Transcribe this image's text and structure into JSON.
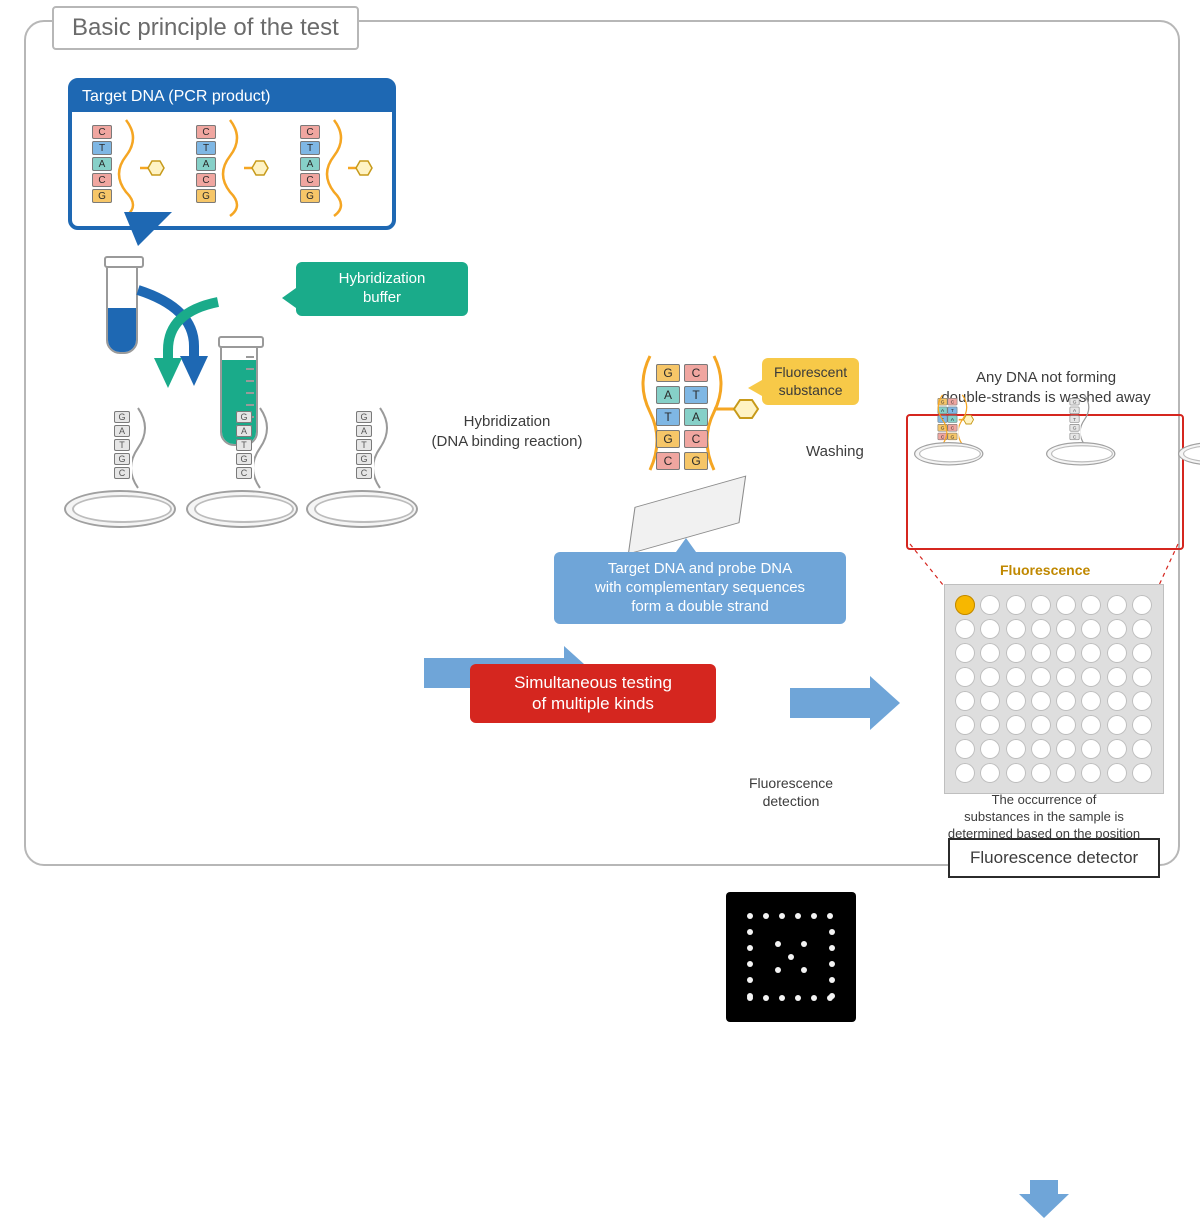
{
  "title": "Basic principle of the test",
  "colors": {
    "frame_border": "#b7b7b7",
    "title_text": "#6b6b6b",
    "primary_blue": "#1e68b3",
    "arrow_blue": "#6fa5d8",
    "buffer_green": "#1aab8a",
    "yellow": "#f7c948",
    "red_callout": "#d5261f",
    "callout_blue": "#6fa5d8",
    "nt_G": "#f6c668",
    "nt_A": "#86d0c8",
    "nt_T": "#7fb7e4",
    "nt_C": "#f0a6a0",
    "strand": "#f5a623",
    "text": "#3c3c3c",
    "grid_bg": "#dedede",
    "well_fluor": "#f7b700"
  },
  "panels": {
    "target_dna": {
      "title": "Target DNA (PCR product)",
      "sequences": [
        [
          "C",
          "T",
          "A",
          "C",
          "G"
        ],
        [
          "C",
          "T",
          "A",
          "C",
          "G"
        ],
        [
          "C",
          "T",
          "A",
          "C",
          "G"
        ]
      ]
    },
    "buffer_label": "Hybridization\nbuffer",
    "hybridization_label": "Hybridization\n(DNA binding reaction)",
    "pair_box": "Target DNA and probe DNA\nwith complementary sequences\nform a double strand",
    "fluorescent_label": "Fluorescent\nsubstance",
    "paired_sequence": {
      "left": [
        "G",
        "A",
        "T",
        "G",
        "C"
      ],
      "right": [
        "C",
        "T",
        "A",
        "C",
        "G"
      ]
    },
    "probe_sequence": [
      "G",
      "A",
      "T",
      "G",
      "C"
    ],
    "washing_label": "Washing",
    "wash_title": "Any DNA not forming\ndouble-strands is washed away",
    "fluorescence_word": "Fluorescence",
    "well_plate_caption": "The occurrence of\nsubstances in the sample is\ndetermined based on the position\nof fluorescence",
    "detector_box": "Fluorescence detector",
    "simultaneous_label": "Simultaneous testing\nof multiple kinds",
    "dark_chip_caption": "Fluorescence\ndetection"
  },
  "well_plate": {
    "rows": 8,
    "cols": 8,
    "fluorescent_index": 0
  }
}
